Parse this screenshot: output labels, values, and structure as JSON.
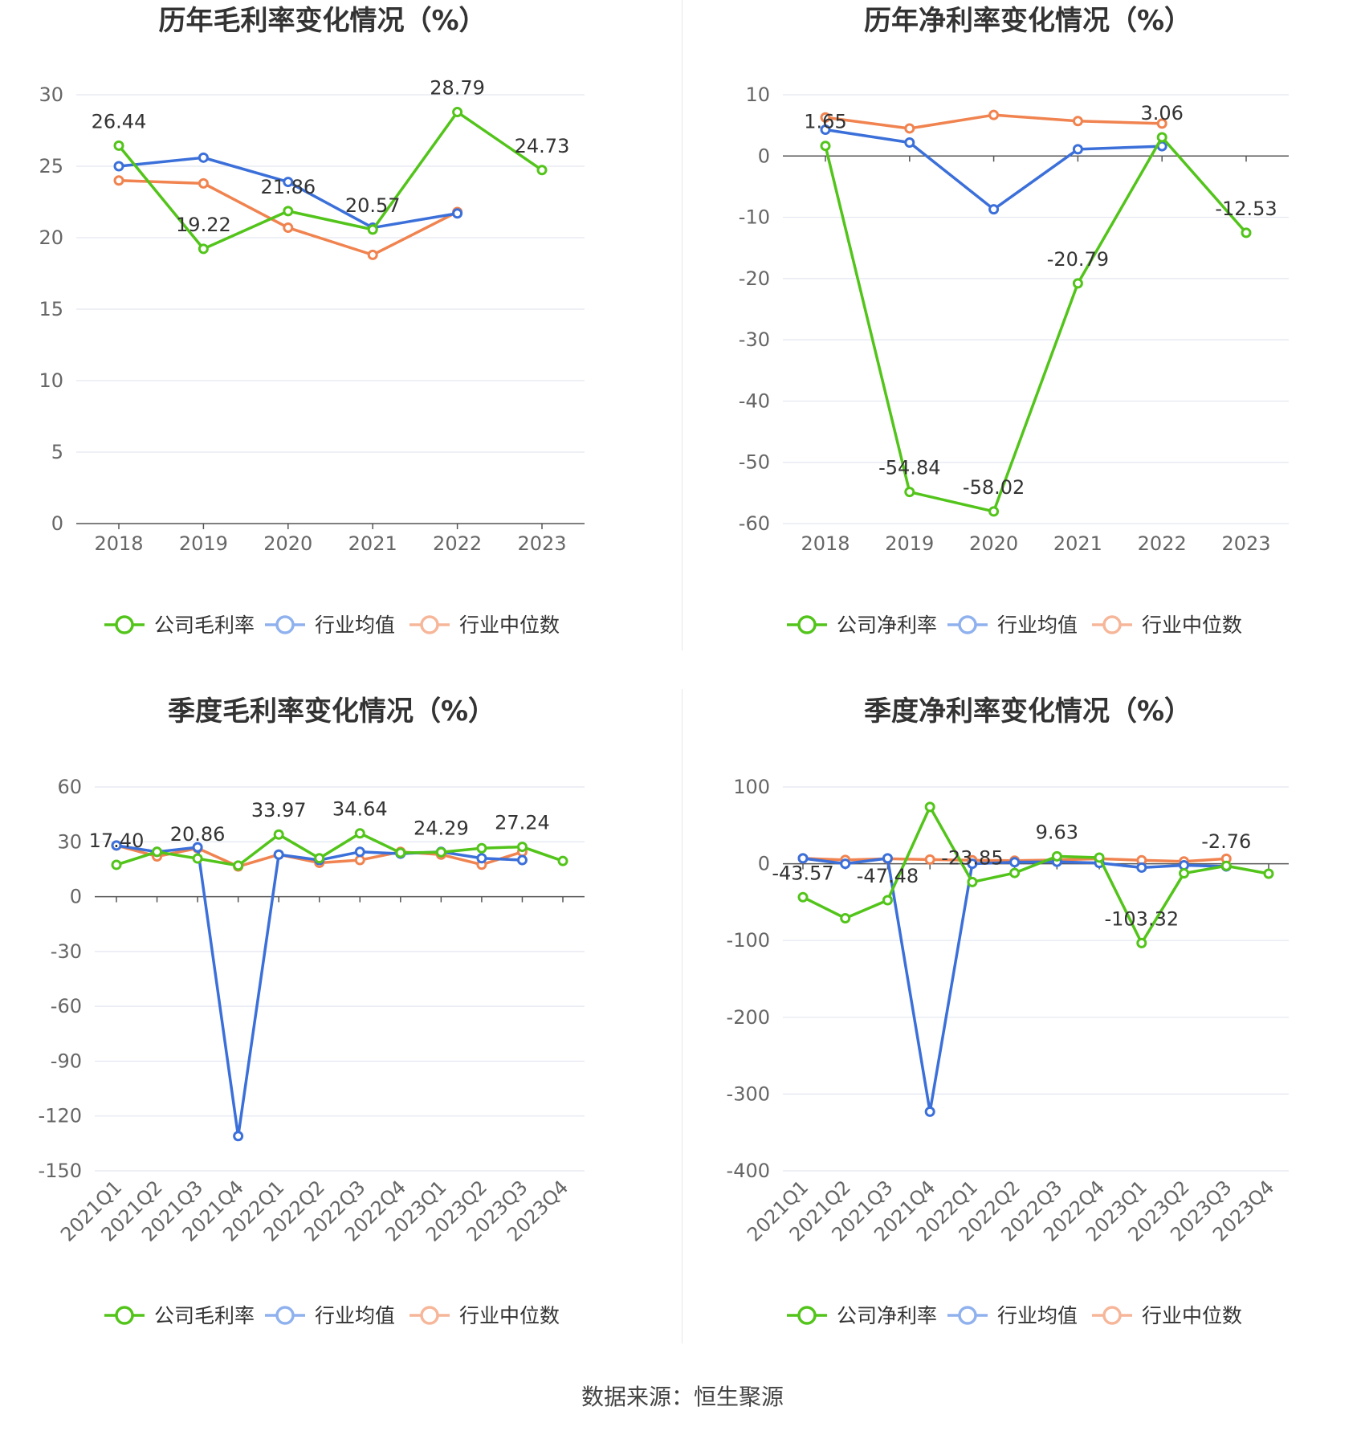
{
  "source": "数据来源：恒生聚源",
  "colors": {
    "company": "#52c41a",
    "avg": "#3b6fd9",
    "median": "#f0834f",
    "avg_legend": "#8fb1ee",
    "median_legend": "#f6b699",
    "grid": "#e3e6f0",
    "axis": "#555555"
  },
  "charts": [
    {
      "title": "历年毛利率变化情况（%）",
      "legend": [
        "公司毛利率",
        "行业均值",
        "行业中位数"
      ],
      "y_ticks": [
        "0",
        "5",
        "10",
        "15",
        "20",
        "25",
        "30"
      ],
      "x_ticks": [
        "2018",
        "2019",
        "2020",
        "2021",
        "2022",
        "2023"
      ],
      "data_labels": [
        "26.44",
        "19.22",
        "21.86",
        "20.57",
        "28.79",
        "24.73"
      ]
    },
    {
      "title": "历年净利率变化情况（%）",
      "legend": [
        "公司净利率",
        "行业均值",
        "行业中位数"
      ],
      "y_ticks": [
        "-60",
        "-50",
        "-40",
        "-30",
        "-20",
        "-10",
        "0",
        "10"
      ],
      "x_ticks": [
        "2018",
        "2019",
        "2020",
        "2021",
        "2022",
        "2023"
      ],
      "data_labels": [
        "1.65",
        "-54.84",
        "-58.02",
        "-20.79",
        "3.06",
        "-12.53"
      ]
    },
    {
      "title": "季度毛利率变化情况（%）",
      "legend": [
        "公司毛利率",
        "行业均值",
        "行业中位数"
      ],
      "y_ticks": [
        "-150",
        "-120",
        "-90",
        "-60",
        "-30",
        "0",
        "30",
        "60"
      ],
      "x_ticks": [
        "2021Q1",
        "2021Q2",
        "2021Q3",
        "2021Q4",
        "2022Q1",
        "2022Q2",
        "2022Q3",
        "2022Q4",
        "2023Q1",
        "2023Q2",
        "2023Q3",
        "2023Q4"
      ],
      "data_labels": [
        "17.40",
        "20.86",
        "33.97",
        "34.64",
        "24.29",
        "27.24"
      ]
    },
    {
      "title": "季度净利率变化情况（%）",
      "legend": [
        "公司净利率",
        "行业均值",
        "行业中位数"
      ],
      "y_ticks": [
        "-400",
        "-300",
        "-200",
        "-100",
        "0",
        "100"
      ],
      "x_ticks": [
        "2021Q1",
        "2021Q2",
        "2021Q3",
        "2021Q4",
        "2022Q1",
        "2022Q2",
        "2022Q3",
        "2022Q4",
        "2023Q1",
        "2023Q2",
        "2023Q3",
        "2023Q4"
      ],
      "data_labels": [
        "-43.57",
        "-47.48",
        "-23.85",
        "9.63",
        "-103.32",
        "-2.76"
      ]
    }
  ],
  "chart_data": [
    {
      "type": "line",
      "title": "历年毛利率变化情况（%）",
      "x": [
        "2018",
        "2019",
        "2020",
        "2021",
        "2022",
        "2023"
      ],
      "ylim": [
        0,
        30
      ],
      "legend_position": "bottom",
      "grid": true,
      "series": [
        {
          "name": "公司毛利率",
          "values": [
            26.44,
            19.22,
            21.86,
            20.57,
            28.79,
            24.73
          ]
        },
        {
          "name": "行业均值",
          "values": [
            25.0,
            25.6,
            23.9,
            20.7,
            21.7,
            null
          ]
        },
        {
          "name": "行业中位数",
          "values": [
            24.0,
            23.8,
            20.7,
            18.8,
            21.8,
            null
          ]
        }
      ],
      "labeled": [
        [
          0,
          26.44
        ],
        [
          1,
          19.22
        ],
        [
          2,
          21.86
        ],
        [
          3,
          20.57
        ],
        [
          4,
          28.79
        ],
        [
          5,
          24.73
        ]
      ]
    },
    {
      "type": "line",
      "title": "历年净利率变化情况（%）",
      "x": [
        "2018",
        "2019",
        "2020",
        "2021",
        "2022",
        "2023"
      ],
      "ylim": [
        -60,
        10
      ],
      "legend_position": "bottom",
      "grid": true,
      "series": [
        {
          "name": "公司净利率",
          "values": [
            1.65,
            -54.84,
            -58.02,
            -20.79,
            3.06,
            -12.53
          ]
        },
        {
          "name": "行业均值",
          "values": [
            4.3,
            2.2,
            -8.7,
            1.1,
            1.6,
            null
          ]
        },
        {
          "name": "行业中位数",
          "values": [
            6.3,
            4.5,
            6.7,
            5.7,
            5.3,
            null
          ]
        }
      ],
      "labeled": [
        [
          0,
          1.65
        ],
        [
          1,
          -54.84
        ],
        [
          2,
          -58.02
        ],
        [
          3,
          -20.79
        ],
        [
          4,
          3.06
        ],
        [
          5,
          -12.53
        ]
      ]
    },
    {
      "type": "line",
      "title": "季度毛利率变化情况（%）",
      "x": [
        "2021Q1",
        "2021Q2",
        "2021Q3",
        "2021Q4",
        "2022Q1",
        "2022Q2",
        "2022Q3",
        "2022Q4",
        "2023Q1",
        "2023Q2",
        "2023Q3",
        "2023Q4"
      ],
      "ylim": [
        -150,
        60
      ],
      "legend_position": "bottom",
      "grid": true,
      "series": [
        {
          "name": "公司毛利率",
          "values": [
            17.4,
            24.5,
            20.86,
            17.0,
            33.97,
            21.0,
            34.64,
            24.0,
            24.29,
            26.5,
            27.24,
            19.5
          ]
        },
        {
          "name": "行业均值",
          "values": [
            28.0,
            24.5,
            27.0,
            -131.0,
            23.0,
            20.0,
            24.5,
            23.5,
            24.5,
            21.0,
            20.0,
            null
          ]
        },
        {
          "name": "行业中位数",
          "values": [
            28.0,
            22.0,
            26.5,
            16.5,
            23.0,
            18.5,
            20.0,
            24.5,
            23.0,
            17.5,
            24.5,
            null
          ]
        }
      ],
      "labeled": [
        [
          0,
          17.4
        ],
        [
          2,
          20.86
        ],
        [
          4,
          33.97
        ],
        [
          6,
          34.64
        ],
        [
          8,
          24.29
        ],
        [
          10,
          27.24
        ]
      ]
    },
    {
      "type": "line",
      "title": "季度净利率变化情况（%）",
      "x": [
        "2021Q1",
        "2021Q2",
        "2021Q3",
        "2021Q4",
        "2022Q1",
        "2022Q2",
        "2022Q3",
        "2022Q4",
        "2023Q1",
        "2023Q2",
        "2023Q3",
        "2023Q4"
      ],
      "ylim": [
        -400,
        100
      ],
      "legend_position": "bottom",
      "grid": true,
      "series": [
        {
          "name": "公司净利率",
          "values": [
            -43.57,
            -71.0,
            -47.48,
            74.0,
            -23.85,
            -12.0,
            9.63,
            8.0,
            -103.32,
            -12.5,
            -2.76,
            -13.0
          ]
        },
        {
          "name": "行业均值",
          "values": [
            7.0,
            0.0,
            7.0,
            -323.0,
            0.0,
            2.0,
            2.5,
            1.0,
            -5.0,
            -2.0,
            -3.5,
            null
          ]
        },
        {
          "name": "行业中位数",
          "values": [
            7.0,
            5.0,
            6.5,
            5.5,
            4.5,
            4.0,
            5.0,
            6.5,
            4.5,
            3.0,
            6.5,
            null
          ]
        }
      ],
      "labeled": [
        [
          0,
          -43.57
        ],
        [
          2,
          -47.48
        ],
        [
          4,
          -23.85
        ],
        [
          6,
          9.63
        ],
        [
          8,
          -103.32
        ],
        [
          10,
          -2.76
        ]
      ]
    }
  ]
}
